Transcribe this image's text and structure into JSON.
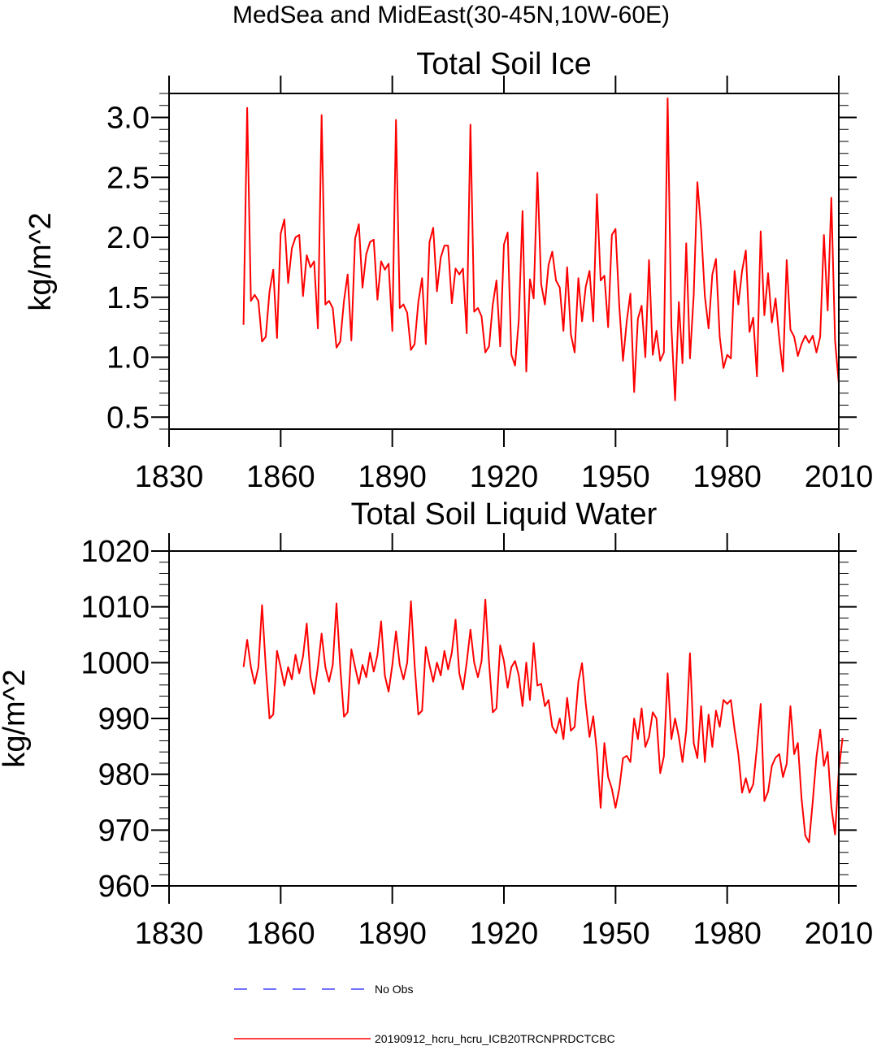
{
  "figure_title": "MedSea and MidEast(30-45N,10W-60E)",
  "legend": {
    "entries": [
      {
        "label": "No Obs",
        "color": "#4444ff",
        "style": "dashed"
      },
      {
        "label": "20190912_hcru_hcru_ICB20TRCNPRDCTCBC",
        "color": "#ff0000",
        "style": "solid"
      }
    ]
  },
  "chart_data": [
    {
      "type": "line",
      "title": "Total Soil Ice",
      "xlabel": "",
      "ylabel": "kg/m^2",
      "xlim": [
        1830,
        2010
      ],
      "ylim": [
        0.4,
        3.2
      ],
      "x_ticks": [
        1830,
        1860,
        1890,
        1920,
        1950,
        1980,
        2010
      ],
      "y_ticks": [
        0.5,
        1.0,
        1.5,
        2.0,
        2.5,
        3.0
      ],
      "y_tick_labels": [
        "0.5",
        "1.0",
        "1.5",
        "2.0",
        "2.5",
        "3.0"
      ],
      "x_start": 1850,
      "series": [
        {
          "name": "20190912_hcru_hcru_ICB20TRCNPRDCTCBC",
          "color": "#ff0000",
          "values": [
            1.27,
            3.08,
            1.47,
            1.52,
            1.47,
            1.13,
            1.17,
            1.55,
            1.73,
            1.16,
            2.03,
            2.15,
            1.62,
            1.91,
            2.0,
            2.02,
            1.51,
            1.85,
            1.75,
            1.8,
            1.24,
            3.02,
            1.44,
            1.47,
            1.41,
            1.08,
            1.13,
            1.47,
            1.69,
            1.14,
            1.99,
            2.11,
            1.58,
            1.86,
            1.96,
            1.98,
            1.48,
            1.8,
            1.73,
            1.78,
            1.22,
            2.98,
            1.41,
            1.44,
            1.37,
            1.06,
            1.11,
            1.46,
            1.66,
            1.11,
            1.96,
            2.08,
            1.55,
            1.83,
            1.93,
            1.93,
            1.45,
            1.74,
            1.69,
            1.74,
            1.2,
            2.94,
            1.38,
            1.41,
            1.34,
            1.04,
            1.09,
            1.44,
            1.64,
            1.09,
            1.94,
            2.04,
            1.02,
            0.93,
            1.31,
            2.22,
            0.88,
            1.65,
            1.49,
            2.54,
            1.61,
            1.44,
            1.77,
            1.88,
            1.64,
            1.58,
            1.22,
            1.75,
            1.19,
            1.04,
            1.66,
            1.3,
            1.59,
            1.72,
            1.3,
            2.36,
            1.64,
            1.68,
            1.25,
            2.02,
            2.07,
            1.43,
            0.97,
            1.3,
            1.53,
            0.71,
            1.32,
            1.43,
            1.0,
            1.81,
            1.02,
            1.22,
            0.97,
            1.04,
            3.16,
            1.26,
            0.64,
            1.46,
            0.95,
            1.95,
            0.99,
            1.52,
            2.46,
            2.07,
            1.51,
            1.24,
            1.69,
            1.82,
            1.17,
            0.91,
            1.02,
            0.99,
            1.72,
            1.44,
            1.72,
            1.89,
            1.21,
            1.33,
            0.84,
            2.05,
            1.35,
            1.7,
            1.29,
            1.49,
            1.15,
            0.88,
            1.81,
            1.23,
            1.17,
            1.01,
            1.11,
            1.18,
            1.12,
            1.18,
            1.04,
            1.17,
            2.02,
            1.39,
            2.33,
            1.14,
            0.78
          ]
        }
      ]
    },
    {
      "type": "line",
      "title": "Total Soil Liquid Water",
      "xlabel": "",
      "ylabel": "kg/m^2",
      "xlim": [
        1830,
        2010
      ],
      "ylim": [
        960,
        1020
      ],
      "x_ticks": [
        1830,
        1860,
        1890,
        1920,
        1950,
        1980,
        2010
      ],
      "y_ticks": [
        960,
        970,
        980,
        990,
        1000,
        1010,
        1020
      ],
      "y_tick_labels": [
        "960",
        "970",
        "980",
        "990",
        "1000",
        "1010",
        "1020"
      ],
      "x_start": 1850,
      "series": [
        {
          "name": "20190912_hcru_hcru_ICB20TRCNPRDCTCBC",
          "color": "#ff0000",
          "values": [
            999.2,
            1004.1,
            999.2,
            996.2,
            999.2,
            1010.3,
            999.2,
            990.0,
            990.7,
            1002.1,
            999.2,
            995.9,
            999.2,
            997.0,
            1001.4,
            998.1,
            1001.1,
            1007.0,
            997.4,
            994.4,
            999.2,
            1005.2,
            999.2,
            996.6,
            999.6,
            1010.6,
            999.2,
            990.3,
            991.1,
            1002.4,
            999.2,
            996.2,
            999.6,
            997.4,
            1001.8,
            998.4,
            1001.4,
            1007.4,
            997.7,
            994.8,
            999.6,
            1005.6,
            999.6,
            997.0,
            1000.0,
            1011.0,
            999.6,
            990.7,
            991.4,
            1002.8,
            999.6,
            996.6,
            1000.0,
            997.7,
            1002.1,
            998.8,
            1001.8,
            1007.7,
            998.1,
            995.2,
            1000.0,
            1005.9,
            1000.0,
            997.4,
            1000.3,
            1011.3,
            1000.0,
            991.1,
            991.8,
            1003.1,
            1000.3,
            995.5,
            999.2,
            1000.3,
            997.7,
            992.2,
            1000.0,
            993.3,
            1003.5,
            995.9,
            996.2,
            992.2,
            993.3,
            988.5,
            987.4,
            990.0,
            986.3,
            993.7,
            987.8,
            988.5,
            996.6,
            999.9,
            992.6,
            986.7,
            990.4,
            984.0,
            974.0,
            985.6,
            979.5,
            977.4,
            974.0,
            977.4,
            982.9,
            983.3,
            982.2,
            990.0,
            986.3,
            991.8,
            984.9,
            986.7,
            991.1,
            990.0,
            980.2,
            983.2,
            998.1,
            986.3,
            990.0,
            986.7,
            982.2,
            987.8,
            1001.7,
            985.6,
            982.9,
            992.2,
            982.2,
            990.7,
            984.9,
            991.4,
            988.5,
            993.3,
            992.6,
            993.3,
            988.0,
            983.6,
            976.7,
            979.3,
            976.7,
            978.2,
            984.9,
            992.6,
            975.2,
            976.9,
            981.5,
            983.0,
            983.6,
            979.5,
            981.9,
            992.2,
            983.6,
            985.6,
            975.6,
            969.0,
            967.8,
            975.2,
            983.1,
            988.0,
            981.5,
            984.0,
            974.2,
            969.2,
            980.6,
            986.5
          ]
        }
      ]
    }
  ]
}
